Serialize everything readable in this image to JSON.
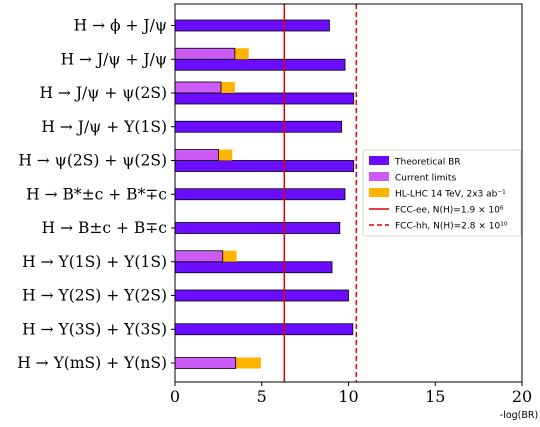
{
  "chart_data": {
    "type": "bar",
    "orientation": "horizontal",
    "xlabel": "-log(BR)",
    "xlim": [
      0,
      20
    ],
    "xticks": [
      0,
      5,
      10,
      15,
      20
    ],
    "categories": [
      "H → ϕ + J/ψ",
      "H → J/ψ + J/ψ",
      "H → J/ψ + ψ(2S)",
      "H → J/ψ + Υ(1S)",
      "H → ψ(2S) + ψ(2S)",
      "H → B*±c + B*∓c",
      "H → B±c + B∓c",
      "H → Υ(1S) + Υ(1S)",
      "H → Υ(2S) + Υ(2S)",
      "H → Υ(3S) + Υ(3S)",
      "H → Υ(mS) + Υ(nS)"
    ],
    "series": [
      {
        "name": "Theoretical BR",
        "color": "#6a0dff",
        "values": [
          8.9,
          9.8,
          10.3,
          9.6,
          10.3,
          9.8,
          9.5,
          9.05,
          10.0,
          10.25,
          null
        ]
      },
      {
        "name": "Current limits",
        "color": "#cc5cf5",
        "values": [
          null,
          3.45,
          2.65,
          null,
          2.5,
          null,
          null,
          2.75,
          null,
          null,
          3.5
        ]
      },
      {
        "name": "HL-LHC 14 TeV, 2x3 ab⁻¹",
        "color": "#ffb400",
        "values": [
          null,
          4.25,
          3.45,
          null,
          3.3,
          null,
          null,
          3.55,
          null,
          null,
          4.95
        ]
      }
    ],
    "reference_lines": [
      {
        "name": "FCC-ee, N(H)=1.9 × 10⁶",
        "x": 6.3,
        "color": "#e00000",
        "style": "solid"
      },
      {
        "name": "FCC-hh, N(H)=2.8 × 10¹⁰",
        "x": 10.45,
        "color": "#e00000",
        "style": "dashed"
      }
    ],
    "legend": {
      "placement": "right",
      "entries": [
        "Theoretical BR",
        "Current limits",
        "HL-LHC 14 TeV, 2x3 ab⁻¹",
        "FCC-ee, N(H)=1.9 × 10⁶",
        "FCC-hh, N(H)=2.8 × 10¹⁰"
      ]
    },
    "grid": false
  }
}
